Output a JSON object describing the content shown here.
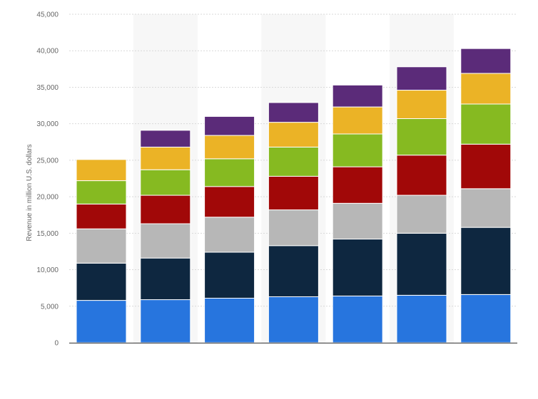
{
  "chart_data": {
    "type": "bar",
    "stacked": true,
    "title": "",
    "xlabel": "",
    "ylabel": "Revenue in million U.S. dollars",
    "ylim": [
      0,
      45000
    ],
    "yticks": [
      0,
      5000,
      10000,
      15000,
      20000,
      25000,
      30000,
      35000,
      40000,
      45000
    ],
    "ytick_labels": [
      "0",
      "5,000",
      "10,000",
      "15,000",
      "20,000",
      "25,000",
      "30,000",
      "35,000",
      "40,000",
      "45,000"
    ],
    "categories": [
      "",
      "",
      "",
      "",
      "",
      "",
      ""
    ],
    "grid": true,
    "legend": "none",
    "series": [
      {
        "color": "#2775de",
        "values": [
          5800,
          5900,
          6100,
          6300,
          6400,
          6500,
          6600
        ]
      },
      {
        "color": "#0e2740",
        "values": [
          5100,
          5700,
          6300,
          7000,
          7800,
          8500,
          9200
        ]
      },
      {
        "color": "#b7b7b7",
        "values": [
          4700,
          4700,
          4800,
          4900,
          4900,
          5200,
          5300
        ]
      },
      {
        "color": "#a10808",
        "values": [
          3400,
          3900,
          4200,
          4600,
          5000,
          5500,
          6100
        ]
      },
      {
        "color": "#86ba21",
        "values": [
          3200,
          3500,
          3800,
          4000,
          4500,
          5000,
          5500
        ]
      },
      {
        "color": "#ebb326",
        "values": [
          2900,
          3100,
          3200,
          3400,
          3700,
          3900,
          4200
        ]
      },
      {
        "color": "#5b2b79",
        "values": [
          0,
          2300,
          2600,
          2700,
          3000,
          3200,
          3400
        ]
      }
    ]
  }
}
